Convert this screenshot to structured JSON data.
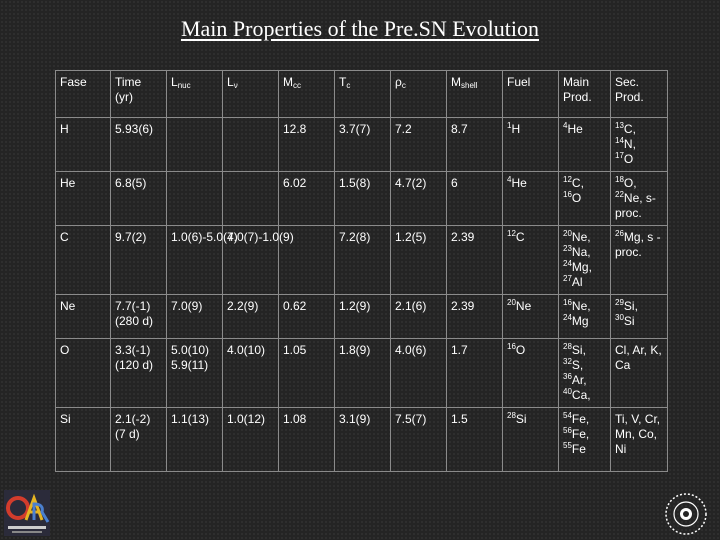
{
  "title": "Main Properties of the Pre.SN Evolution",
  "headers": [
    {
      "main": "Fase",
      "sub": ""
    },
    {
      "main": "Time (yr)",
      "sub": ""
    },
    {
      "main": "L",
      "sub": "nuc"
    },
    {
      "main": "L",
      "sub": "ν"
    },
    {
      "main": "M",
      "sub": "cc"
    },
    {
      "main": "T",
      "sub": "c"
    },
    {
      "main": "ρ",
      "sub": "c"
    },
    {
      "main": "M",
      "sub": "shell"
    },
    {
      "main": "Fuel",
      "sub": ""
    },
    {
      "main": "Main Prod.",
      "sub": ""
    },
    {
      "main": "Sec. Prod.",
      "sub": ""
    }
  ],
  "rows": [
    {
      "fase": "H",
      "time": "5.93(6)",
      "lnuc": "",
      "lnu": "",
      "mcc": "12.8",
      "tc": "3.7(7)",
      "rhoc": "7.2",
      "mshell": "8.7",
      "fuel": [
        [
          "1",
          "H"
        ]
      ],
      "main": [
        [
          "4",
          "He"
        ]
      ],
      "sec": [
        [
          "13",
          "C,"
        ],
        [
          "14",
          "N,"
        ],
        [
          "17",
          "O"
        ]
      ]
    },
    {
      "fase": "He",
      "time": "6.8(5)",
      "lnuc": "",
      "lnu": "",
      "mcc": "6.02",
      "tc": "1.5(8)",
      "rhoc": "4.7(2)",
      "mshell": "6",
      "fuel": [
        [
          "4",
          "He"
        ]
      ],
      "main": [
        [
          "12",
          "C,"
        ],
        [
          "16",
          "O"
        ]
      ],
      "sec": [
        [
          "18",
          "O,"
        ],
        [
          "22",
          "Ne, s-proc."
        ]
      ]
    },
    {
      "fase": "C",
      "time": "9.7(2)",
      "lnuc": "1.0(6)-5.0(7)",
      "lnu": "4.0(7)-1.0(9)",
      "mcc": "",
      "tc": "7.2(8)",
      "rhoc": "1.2(5)",
      "mshell": "2.39",
      "fuel": [
        [
          "12",
          "C"
        ]
      ],
      "main": [
        [
          "20",
          "Ne,"
        ],
        [
          "23",
          "Na,"
        ],
        [
          "24",
          "Mg,"
        ],
        [
          "27",
          "Al"
        ]
      ],
      "sec": [
        [
          "26",
          "Mg, s -proc."
        ]
      ]
    },
    {
      "fase": "Ne",
      "time": "7.7(-1) (280 d)",
      "lnuc": "7.0(9)",
      "lnu": "2.2(9)",
      "mcc": "0.62",
      "tc": "1.2(9)",
      "rhoc": "2.1(6)",
      "mshell": "2.39",
      "fuel": [
        [
          "20",
          "Ne"
        ]
      ],
      "main": [
        [
          "16",
          "Ne,"
        ],
        [
          "24",
          "Mg"
        ]
      ],
      "sec": [
        [
          "29",
          "Si,"
        ],
        [
          "30",
          "Si"
        ]
      ]
    },
    {
      "fase": "O",
      "time": "3.3(-1) (120 d)",
      "lnuc": "5.0(10) 5.9(11)",
      "lnu": "4.0(10)",
      "mcc": "1.05",
      "tc": "1.8(9)",
      "rhoc": "4.0(6)",
      "mshell": "1.7",
      "fuel": [
        [
          "16",
          "O"
        ]
      ],
      "main": [
        [
          "28",
          "Si,"
        ],
        [
          "32",
          "S,"
        ],
        [
          "36",
          "Ar,"
        ],
        [
          "40",
          "Ca,"
        ]
      ],
      "sec": [
        [
          "",
          "Cl, Ar, K, Ca"
        ]
      ]
    },
    {
      "fase": "Si",
      "time": "2.1(-2) (7 d)",
      "lnuc": "1.1(13)",
      "lnu": "1.0(12)",
      "mcc": "1.08",
      "tc": "3.1(9)",
      "rhoc": "7.5(7)",
      "mshell": "1.5",
      "fuel": [
        [
          "28",
          "Si"
        ]
      ],
      "main": [
        [
          "54",
          "Fe,"
        ],
        [
          "56",
          "Fe,"
        ],
        [
          "55",
          "Fe"
        ]
      ],
      "sec": [
        [
          "",
          "Ti, V, Cr, Mn, Co, Ni"
        ]
      ]
    }
  ],
  "logo_left": {
    "letters": "OAR"
  }
}
